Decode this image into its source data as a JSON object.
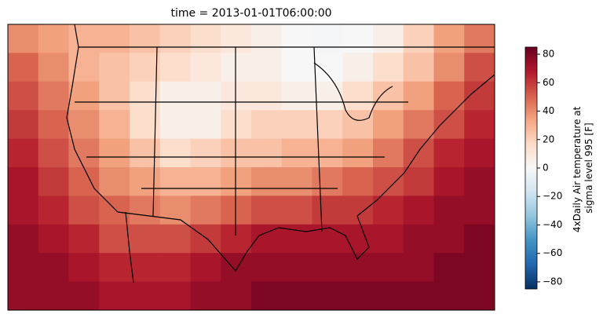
{
  "chart_data": {
    "type": "heatmap",
    "title": "time = 2013-01-01T06:00:00",
    "colorbar_label": [
      "4xDaily Air temperature at",
      "sigma level 995 [F]"
    ],
    "colormap": "RdBu_r",
    "clim": [
      -85,
      85
    ],
    "cticks": [
      {
        "value": -80,
        "label": "−80"
      },
      {
        "value": -60,
        "label": "−60"
      },
      {
        "value": -40,
        "label": "−40"
      },
      {
        "value": -20,
        "label": "−20"
      },
      0,
      20,
      40,
      60,
      80
    ],
    "z": [
      [
        40,
        35,
        30,
        30,
        25,
        20,
        15,
        10,
        5,
        0,
        -2,
        0,
        5,
        20,
        35,
        45
      ],
      [
        50,
        40,
        30,
        25,
        20,
        15,
        10,
        5,
        5,
        0,
        0,
        5,
        15,
        25,
        40,
        55
      ],
      [
        55,
        45,
        35,
        25,
        15,
        5,
        5,
        10,
        10,
        5,
        5,
        15,
        25,
        35,
        50,
        60
      ],
      [
        60,
        50,
        40,
        30,
        15,
        5,
        5,
        15,
        20,
        20,
        20,
        25,
        35,
        45,
        55,
        65
      ],
      [
        65,
        55,
        45,
        35,
        25,
        15,
        20,
        25,
        25,
        30,
        30,
        35,
        45,
        55,
        65,
        70
      ],
      [
        70,
        60,
        50,
        40,
        35,
        30,
        30,
        35,
        40,
        40,
        45,
        50,
        55,
        60,
        70,
        75
      ],
      [
        70,
        65,
        55,
        50,
        45,
        40,
        45,
        50,
        55,
        55,
        60,
        60,
        65,
        70,
        75,
        75
      ],
      [
        75,
        70,
        65,
        55,
        55,
        55,
        60,
        65,
        70,
        70,
        70,
        70,
        70,
        75,
        75,
        80
      ],
      [
        75,
        75,
        70,
        65,
        65,
        65,
        70,
        75,
        75,
        75,
        75,
        75,
        75,
        75,
        80,
        80
      ],
      [
        75,
        75,
        75,
        70,
        70,
        70,
        75,
        75,
        80,
        80,
        80,
        80,
        80,
        80,
        80,
        80
      ]
    ]
  }
}
